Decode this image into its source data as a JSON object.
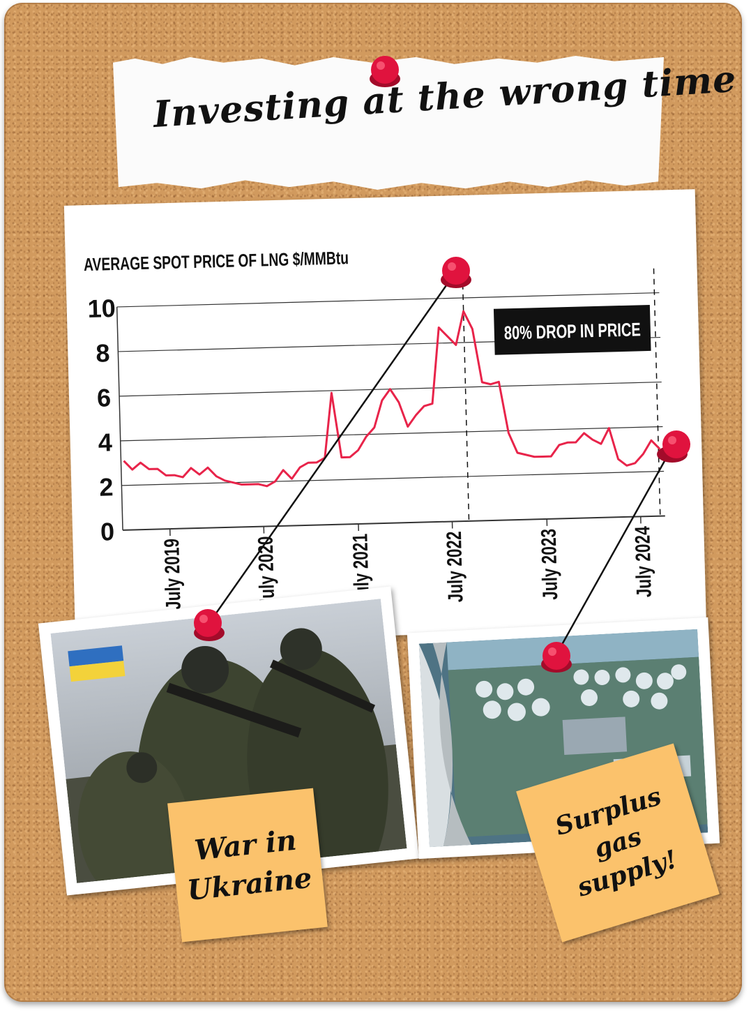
{
  "title": "Investing at the wrong time",
  "chart_data": {
    "type": "line",
    "title": "AVERAGE SPOT PRICE OF LNG $/MMBtu",
    "ylim": [
      0,
      10
    ],
    "yticks": [
      "0",
      "2",
      "4",
      "6",
      "8",
      "10"
    ],
    "xticks": [
      "July 2019",
      "July 2020",
      "July 2021",
      "July 2022",
      "July 2023",
      "July 2024"
    ],
    "annotation": "80% DROP IN PRICE",
    "series": [
      {
        "color": "#e8244a",
        "values": [
          3.1,
          2.7,
          3.0,
          2.7,
          2.7,
          2.4,
          2.4,
          2.3,
          2.7,
          2.4,
          2.7,
          2.3,
          2.1,
          2.0,
          1.9,
          1.9,
          1.9,
          1.8,
          2.0,
          2.5,
          2.1,
          2.6,
          2.8,
          2.8,
          3.0,
          5.9,
          3.0,
          3.0,
          3.3,
          3.9,
          4.3,
          5.5,
          6.0,
          5.4,
          4.3,
          4.8,
          5.2,
          5.3,
          8.7,
          8.3,
          7.9,
          9.4,
          8.6,
          6.2,
          6.1,
          6.2,
          3.9,
          3.0,
          2.9,
          2.8,
          2.8,
          2.8,
          3.3,
          3.4,
          3.4,
          3.8,
          3.5,
          3.3,
          4.0,
          2.6,
          2.3,
          2.4,
          2.8,
          3.4,
          3.0
        ]
      }
    ]
  },
  "photos": {
    "war_caption": [
      "War in",
      "Ukraine"
    ],
    "gas_caption": [
      "Surplus",
      "gas",
      "supply!"
    ]
  },
  "colors": {
    "pin": "#e0133e",
    "line": "#e8244a",
    "note": "#fbc26c",
    "cork": "#d19a5e"
  }
}
